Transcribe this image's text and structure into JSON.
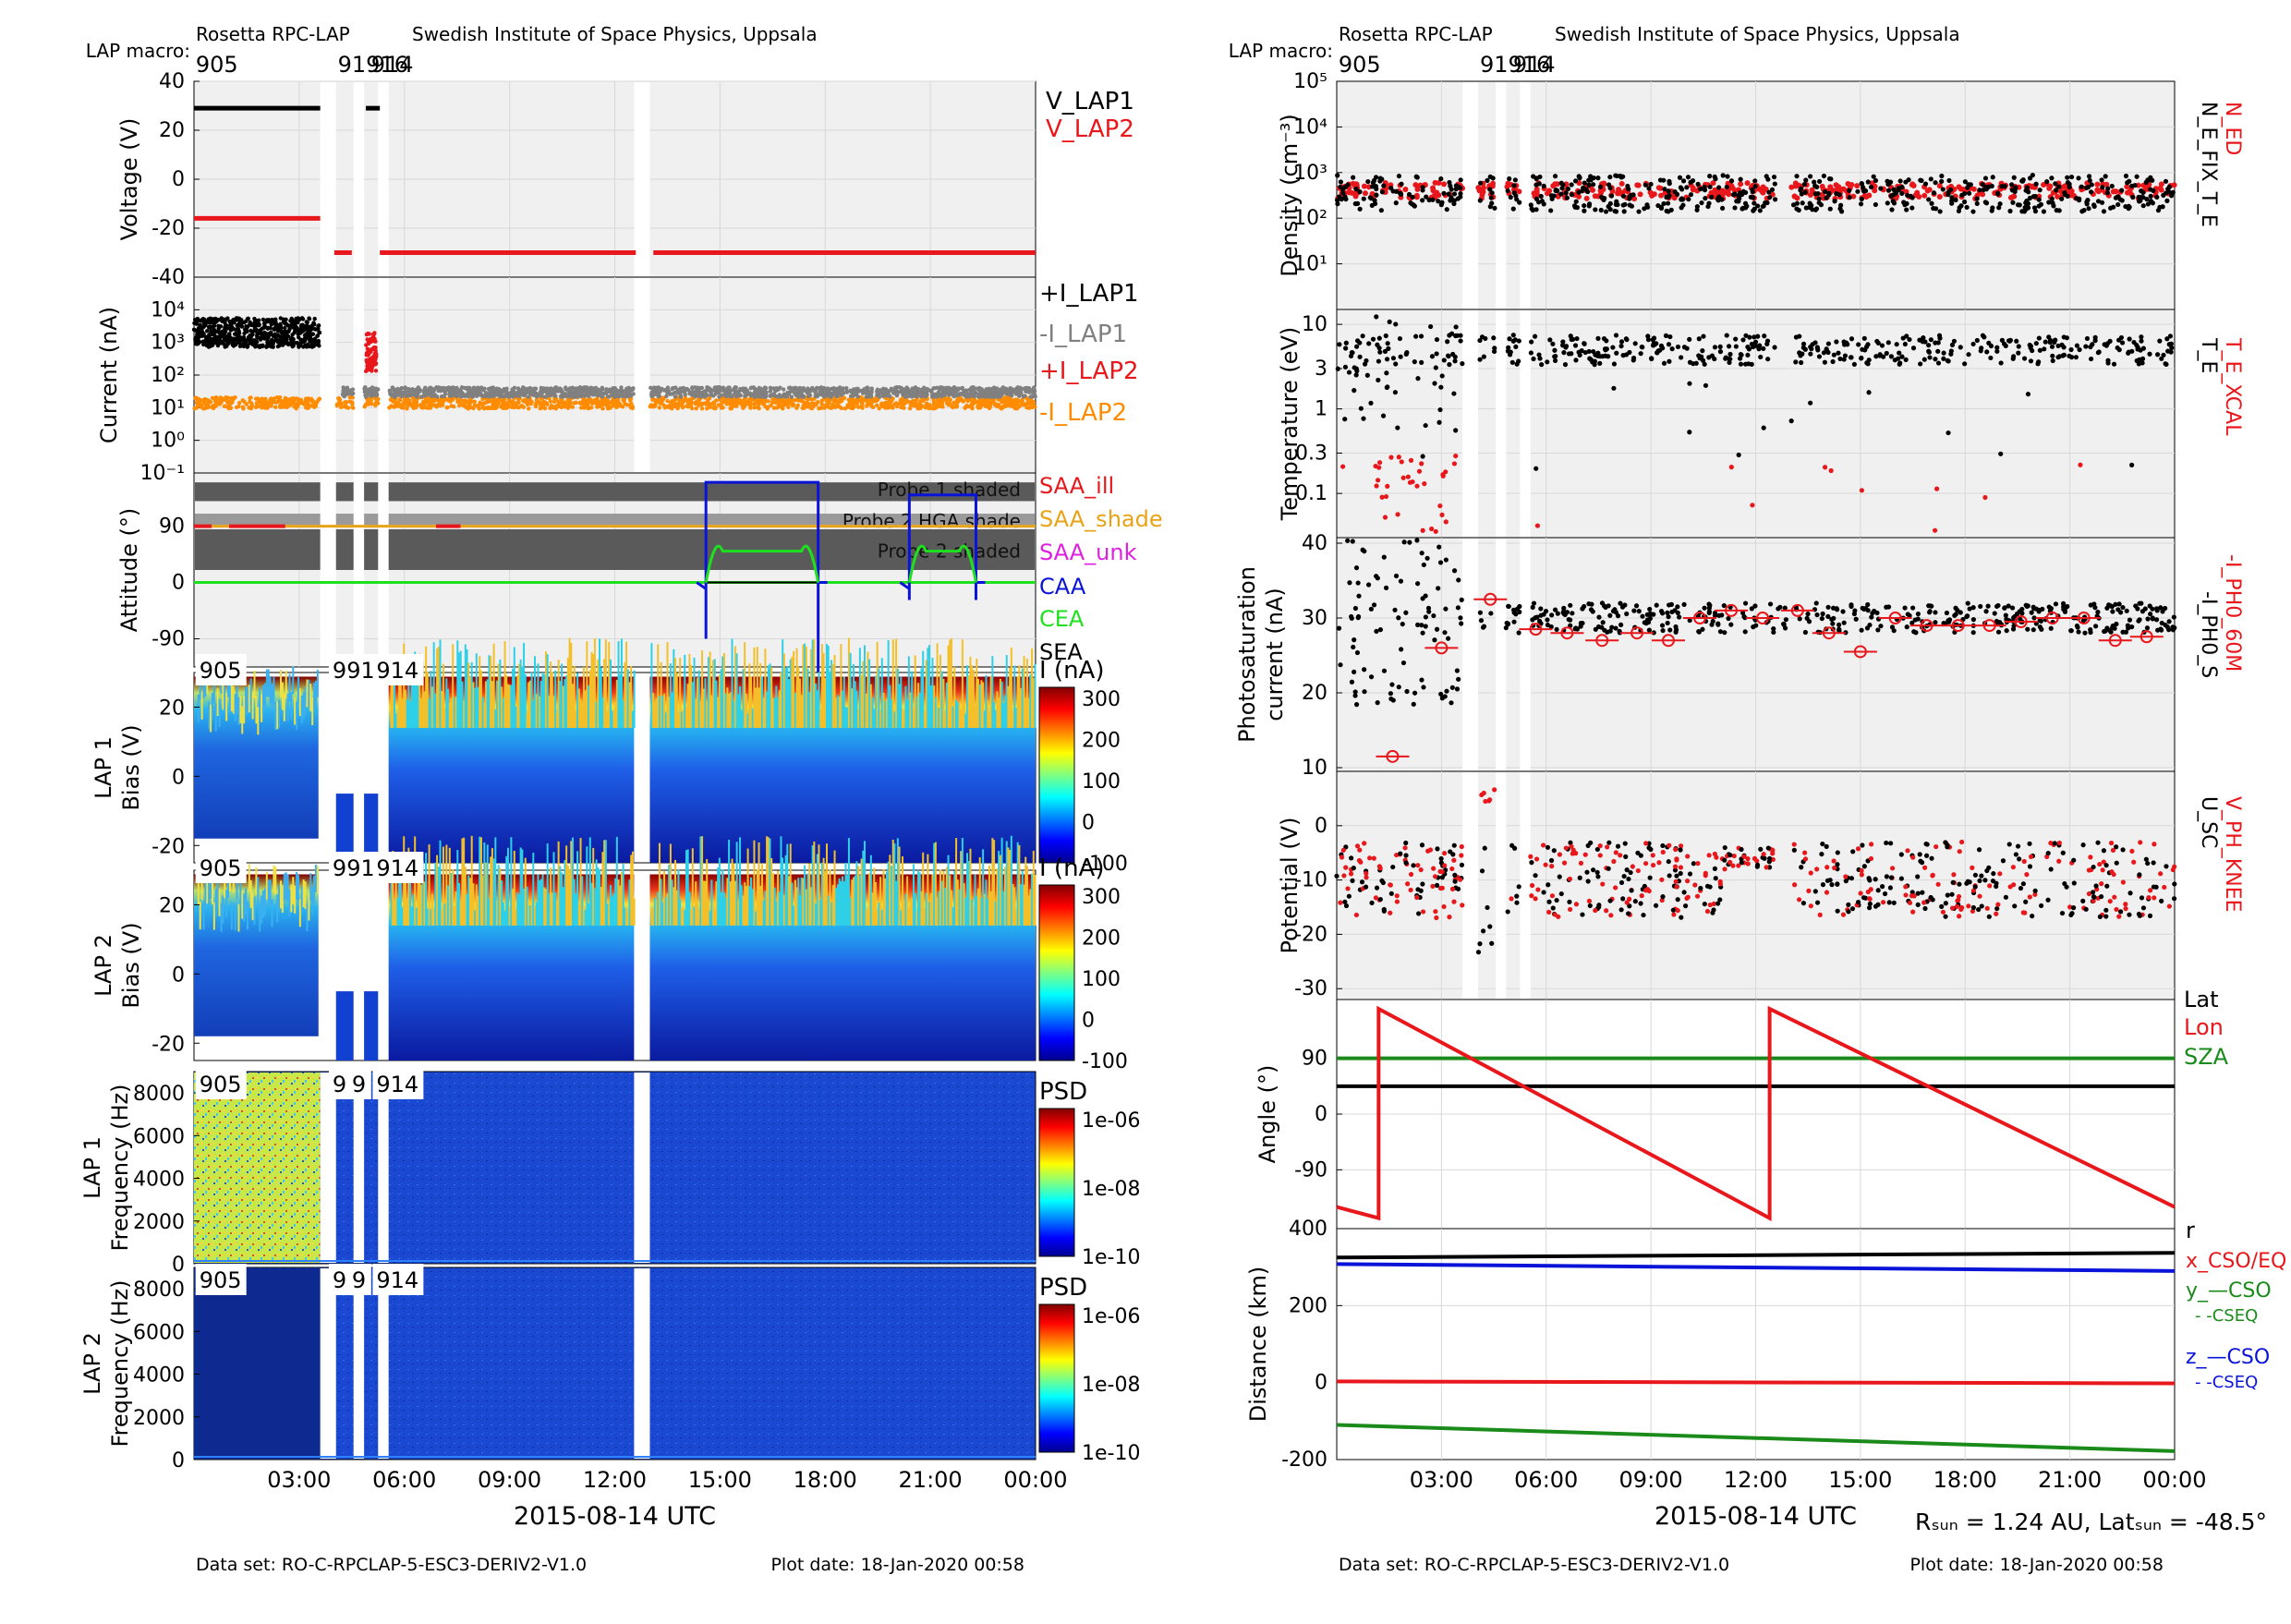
{
  "left": {
    "header_title": "Rosetta RPC-LAP",
    "header_inst": "Swedish Institute of Space Physics, Uppsala",
    "macro_label": "LAP macro:",
    "macro_a": "905",
    "macro_b": "91916",
    "macro_c": "914",
    "xlabel": "2015-08-14 UTC",
    "footer_dataset": "Data set: RO-C-RPCLAP-5-ESC3-DERIV2-V1.0",
    "footer_plotdate": "Plot date: 18-Jan-2020 00:58"
  },
  "right": {
    "header_title": "Rosetta RPC-LAP",
    "header_inst": "Swedish Institute of Space Physics, Uppsala",
    "macro_label": "LAP macro:",
    "macro_a": "905",
    "macro_b": "91916",
    "macro_c": "914",
    "xlabel": "2015-08-14 UTC",
    "rsun_text": "Rₛᵤₙ = 1.24 AU, Latₛᵤₙ = -48.5°",
    "footer_dataset": "Data set: RO-C-RPCLAP-5-ESC3-DERIV2-V1.0",
    "footer_plotdate": "Plot date: 18-Jan-2020 00:58"
  },
  "x_ticks": [
    "03:00",
    "06:00",
    "09:00",
    "12:00",
    "15:00",
    "18:00",
    "21:00",
    "00:00"
  ],
  "colors": {
    "black": "#000000",
    "red": "#e8171b",
    "grey": "#808080",
    "orange": "#ff8c00",
    "gold": "#e8a317",
    "magenta": "#e020e0",
    "blue": "#0a14d8",
    "green": "#1ee01e",
    "darkgreen": "#1a8a1a",
    "panel": "#f0f0f0"
  },
  "chart_data": [
    {
      "type": "line",
      "panel": "voltage",
      "ylabel": "Voltage (V)",
      "yticks": [
        "40",
        "20",
        "0",
        "-20",
        "-40"
      ],
      "ylim": [
        -40,
        40
      ],
      "legend": [
        "V_LAP1",
        "V_LAP2"
      ],
      "series": [
        {
          "name": "V_LAP1",
          "segments": [
            {
              "t": [
                0.0,
                3.6
              ],
              "v": 29
            },
            {
              "t": [
                4.9,
                5.3
              ],
              "v": 29
            }
          ]
        },
        {
          "name": "V_LAP2",
          "segments": [
            {
              "t": [
                0.0,
                3.6
              ],
              "v": -16
            },
            {
              "t": [
                4.0,
                4.5
              ],
              "v": -30
            },
            {
              "t": [
                5.3,
                12.6
              ],
              "v": -30
            },
            {
              "t": [
                13.1,
                24.0
              ],
              "v": -30
            }
          ]
        }
      ]
    },
    {
      "type": "scatter",
      "panel": "current",
      "scale": "log",
      "ylabel": "Current (nA)",
      "yticks": [
        "10⁴",
        "10³",
        "10²",
        "10¹",
        "10⁰",
        "10⁻¹"
      ],
      "ylim": [
        0.1,
        100000
      ],
      "legend": [
        "+I_LAP1",
        "-I_LAP1",
        "+I_LAP2",
        "-I_LAP2"
      ],
      "series": [
        {
          "name": "+I_LAP1",
          "typical": 2000,
          "span": [
            0.0,
            3.6
          ]
        },
        {
          "name": "-I_LAP1",
          "typical": 30,
          "span": [
            4.2,
            24.0
          ]
        },
        {
          "name": "+I_LAP2",
          "typical": 500,
          "span": [
            4.9,
            5.2
          ]
        },
        {
          "name": "-I_LAP2",
          "typical": 14,
          "span": [
            0.0,
            24.0
          ]
        }
      ]
    },
    {
      "type": "line",
      "panel": "attitude",
      "ylabel": "Attitude (°)",
      "yticks": [
        "90",
        "0",
        "-90"
      ],
      "ylim": [
        -135,
        175
      ],
      "legend": [
        "SAA_ill",
        "SAA_shade",
        "SAA_unk",
        "CAA",
        "CEA",
        "SEA"
      ],
      "annotations": [
        "Probe 1 shaded",
        "Probe 2 HGA shade",
        "Probe 2 shaded"
      ],
      "series": [
        {
          "name": "SAA",
          "value": 90
        },
        {
          "name": "CAA",
          "pulses": [
            [
              14.6,
              17.8
            ],
            [
              20.4,
              22.3
            ]
          ]
        },
        {
          "name": "CEA",
          "value": 0
        },
        {
          "name": "SEA",
          "value": 0
        }
      ]
    },
    {
      "type": "heatmap",
      "panel": "lap1_bias",
      "ylabel": "LAP 1 Bias (V)",
      "yticks": [
        "20",
        "0",
        "-20"
      ],
      "ylim": [
        -25,
        30
      ],
      "colorbar_label": "I (nA)",
      "colorbar_ticks": [
        "300",
        "200",
        "100",
        "0",
        "-100"
      ],
      "macro_labels": [
        "905",
        "9916",
        "914"
      ]
    },
    {
      "type": "heatmap",
      "panel": "lap2_bias",
      "ylabel": "LAP 2 Bias (V)",
      "yticks": [
        "20",
        "0",
        "-20"
      ],
      "ylim": [
        -25,
        30
      ],
      "colorbar_label": "I (nA)",
      "colorbar_ticks": [
        "300",
        "200",
        "100",
        "0",
        "-100"
      ],
      "macro_labels": [
        "905",
        "9916",
        "914"
      ]
    },
    {
      "type": "heatmap",
      "panel": "lap1_freq",
      "ylabel": "LAP 1 Frequency (Hz)",
      "yticks": [
        "8000",
        "6000",
        "4000",
        "2000",
        "0"
      ],
      "ylim": [
        0,
        9000
      ],
      "colorbar_label": "PSD",
      "colorbar_ticks": [
        "1e-06",
        "1e-08",
        "1e-10"
      ],
      "macro_labels": [
        "905",
        "9",
        "9",
        "914"
      ]
    },
    {
      "type": "heatmap",
      "panel": "lap2_freq",
      "ylabel": "LAP 2 Frequency (Hz)",
      "yticks": [
        "8000",
        "6000",
        "4000",
        "2000",
        "0"
      ],
      "ylim": [
        0,
        9000
      ],
      "colorbar_label": "PSD",
      "colorbar_ticks": [
        "1e-06",
        "1e-08",
        "1e-10"
      ],
      "macro_labels": [
        "905",
        "9",
        "9",
        "914"
      ]
    },
    {
      "type": "scatter",
      "panel": "density",
      "scale": "log",
      "ylabel": "Density (cm⁻³)",
      "yticks": [
        "10⁵",
        "10⁴",
        "10³",
        "10²",
        "10¹"
      ],
      "ylim": [
        1,
        100000
      ],
      "legend": [
        "N_ED",
        "N_E_FIX_T_E"
      ],
      "series": [
        {
          "name": "N_ED",
          "typical": 400
        },
        {
          "name": "N_E_FIX_T_E",
          "typical": 350
        }
      ]
    },
    {
      "type": "scatter",
      "panel": "temperature",
      "scale": "log",
      "ylabel": "Temperature (eV)",
      "yticks": [
        "10",
        "3",
        "1",
        "0.3",
        "0.1"
      ],
      "ylim": [
        0.03,
        15
      ],
      "legend": [
        "T_E_XCAL",
        "T_E"
      ],
      "series": [
        {
          "name": "T_E",
          "typical": 5
        },
        {
          "name": "T_E_XCAL",
          "typical": 0.1
        }
      ]
    },
    {
      "type": "scatter",
      "panel": "photosat",
      "ylabel": "Photosaturation current (nA)",
      "yticks": [
        "40",
        "30",
        "20",
        "10"
      ],
      "ylim": [
        10,
        40
      ],
      "legend": [
        "-I_PH0_60M",
        "-I_PH0_S"
      ],
      "series": [
        {
          "name": "-I_PH0_S",
          "typical": 30
        },
        {
          "name": "-I_PH0_60M",
          "points": [
            [
              1.6,
              11.5
            ],
            [
              4.4,
              32.5
            ],
            [
              3.0,
              26
            ],
            [
              5.7,
              28.5
            ],
            [
              6.6,
              28
            ],
            [
              7.6,
              27
            ],
            [
              8.6,
              28
            ],
            [
              9.5,
              27
            ],
            [
              10.4,
              30
            ],
            [
              11.3,
              31
            ],
            [
              12.2,
              30
            ],
            [
              13.2,
              31
            ],
            [
              14.1,
              28
            ],
            [
              15.0,
              25.5
            ],
            [
              16.0,
              30
            ],
            [
              16.9,
              29
            ],
            [
              17.8,
              29
            ],
            [
              18.7,
              29
            ],
            [
              19.6,
              29.5
            ],
            [
              20.5,
              30
            ],
            [
              21.4,
              30
            ],
            [
              22.3,
              27
            ],
            [
              23.2,
              27.5
            ]
          ]
        }
      ]
    },
    {
      "type": "scatter",
      "panel": "potential",
      "ylabel": "Potential (V)",
      "yticks": [
        "0",
        "-10",
        "-20",
        "-30"
      ],
      "ylim": [
        -32,
        10
      ],
      "legend": [
        "V_PH_KNEE",
        "U_SC"
      ],
      "series": [
        {
          "name": "V_PH_KNEE",
          "typical": -10
        },
        {
          "name": "U_SC",
          "typical": -12
        }
      ]
    },
    {
      "type": "line",
      "panel": "angle",
      "ylabel": "Angle (°)",
      "yticks": [
        "90",
        "0",
        "-90"
      ],
      "ylim": [
        -185,
        185
      ],
      "legend": [
        "Lat",
        "Lon",
        "SZA"
      ],
      "series": [
        {
          "name": "Lat",
          "value": 45
        },
        {
          "name": "Lon",
          "sawtooth": [
            [
              0.0,
              -150
            ],
            [
              1.2,
              -168
            ],
            [
              1.2,
              170
            ],
            [
              12.4,
              -168
            ],
            [
              12.4,
              170
            ],
            [
              24.0,
              -150
            ]
          ]
        },
        {
          "name": "SZA",
          "value": 90
        }
      ]
    },
    {
      "type": "line",
      "panel": "distance",
      "ylabel": "Distance (km)",
      "yticks": [
        "400",
        "200",
        "0",
        "-200"
      ],
      "ylim": [
        -200,
        400
      ],
      "legend": [
        "r",
        "x_CSO/EQ",
        "y_—CSO",
        "- -CSEQ",
        "z_—CSO",
        "- -CSEQ"
      ],
      "series": [
        {
          "name": "r",
          "start": 325,
          "end": 337
        },
        {
          "name": "x",
          "start": 3,
          "end": -2
        },
        {
          "name": "y",
          "start": -110,
          "end": -178
        },
        {
          "name": "z",
          "start": 308,
          "end": 290
        }
      ]
    }
  ]
}
